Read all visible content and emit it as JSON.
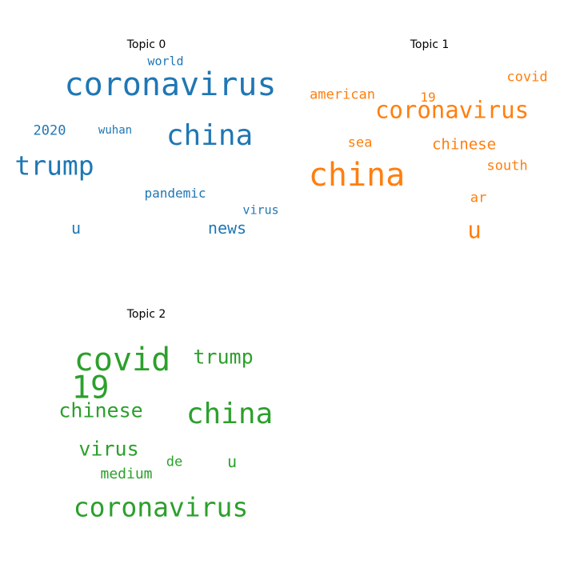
{
  "chart_data": [
    {
      "type": "wordcloud",
      "title": "Topic 0",
      "color": "#1f77b4",
      "words": [
        {
          "text": "coronavirus",
          "weight": 40
        },
        {
          "text": "china",
          "weight": 36
        },
        {
          "text": "trump",
          "weight": 33
        },
        {
          "text": "news",
          "weight": 20
        },
        {
          "text": "u",
          "weight": 20
        },
        {
          "text": "2020",
          "weight": 17
        },
        {
          "text": "pandemic",
          "weight": 16
        },
        {
          "text": "world",
          "weight": 15
        },
        {
          "text": "virus",
          "weight": 15
        },
        {
          "text": "wuhan",
          "weight": 14
        }
      ]
    },
    {
      "type": "wordcloud",
      "title": "Topic 1",
      "color": "#ff7f0e",
      "words": [
        {
          "text": "china",
          "weight": 40
        },
        {
          "text": "coronavirus",
          "weight": 29
        },
        {
          "text": "u",
          "weight": 29
        },
        {
          "text": "chinese",
          "weight": 19
        },
        {
          "text": "american",
          "weight": 17
        },
        {
          "text": "covid",
          "weight": 17
        },
        {
          "text": "south",
          "weight": 17
        },
        {
          "text": "sea",
          "weight": 17
        },
        {
          "text": "ar",
          "weight": 17
        },
        {
          "text": "19",
          "weight": 16
        }
      ]
    },
    {
      "type": "wordcloud",
      "title": "Topic 2",
      "color": "#2ca02c",
      "words": [
        {
          "text": "covid",
          "weight": 40
        },
        {
          "text": "19",
          "weight": 39
        },
        {
          "text": "china",
          "weight": 36
        },
        {
          "text": "coronavirus",
          "weight": 33
        },
        {
          "text": "trump",
          "weight": 25
        },
        {
          "text": "chinese",
          "weight": 25
        },
        {
          "text": "virus",
          "weight": 25
        },
        {
          "text": "u",
          "weight": 20
        },
        {
          "text": "medium",
          "weight": 18
        },
        {
          "text": "de",
          "weight": 17
        }
      ]
    }
  ]
}
